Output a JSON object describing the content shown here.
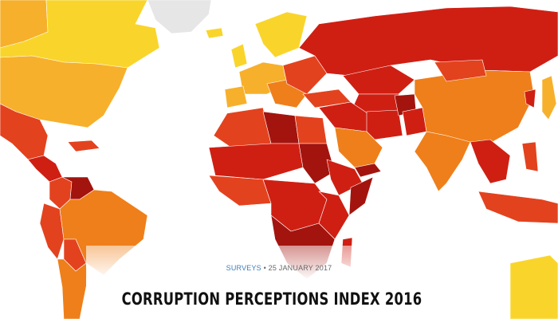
{
  "article": {
    "category": "SURVEYS",
    "separator": "•",
    "date": "25 JANUARY 2017",
    "title": "CORRUPTION PERCEPTIONS INDEX 2016"
  },
  "palette": {
    "very_clean": "#f9d52b",
    "clean": "#f7b02b",
    "middle": "#ef7f1a",
    "corrupt": "#e3421e",
    "very_corrupt": "#cf1f13",
    "highly_corrupt": "#a3140e",
    "no_data": "#e6e6e6"
  }
}
